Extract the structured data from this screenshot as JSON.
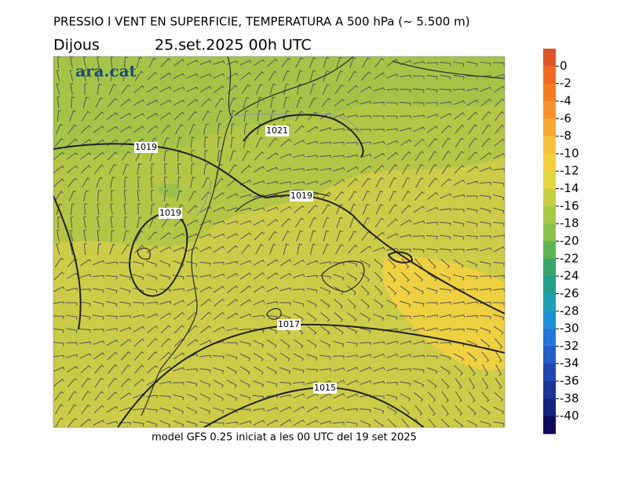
{
  "header": {
    "title": "PRESSIO I VENT EN SUPERFICIE, TEMPERATURA A 500 hPa (~ 5.500 m)",
    "day": "Dijous",
    "date": "25.set.2025 00h UTC"
  },
  "logo": "ara.cat",
  "isobar_labels": [
    1021,
    1019,
    1019,
    1019,
    1017,
    1015
  ],
  "colorbar": {
    "ticks": [
      0,
      -2,
      -4,
      -6,
      -8,
      -10,
      -12,
      -14,
      -16,
      -18,
      -20,
      -22,
      -24,
      -26,
      -28,
      -30,
      -32,
      -34,
      -36,
      -38,
      -40
    ],
    "colors": [
      "#e0552a",
      "#ee6a22",
      "#f47c20",
      "#f5922a",
      "#f7a832",
      "#f7c03a",
      "#f2d03c",
      "#e2d63e",
      "#c8d040",
      "#a8c844",
      "#88c04a",
      "#5cb452",
      "#3aa46a",
      "#22a08c",
      "#1ea0b4",
      "#2090d8",
      "#2476d8",
      "#245cc8",
      "#2048b0",
      "#1a3498",
      "#162280",
      "#100a5c"
    ]
  },
  "footer": "model GFS 0.25 iniciat a les 00 UTC del 19 set 2025"
}
